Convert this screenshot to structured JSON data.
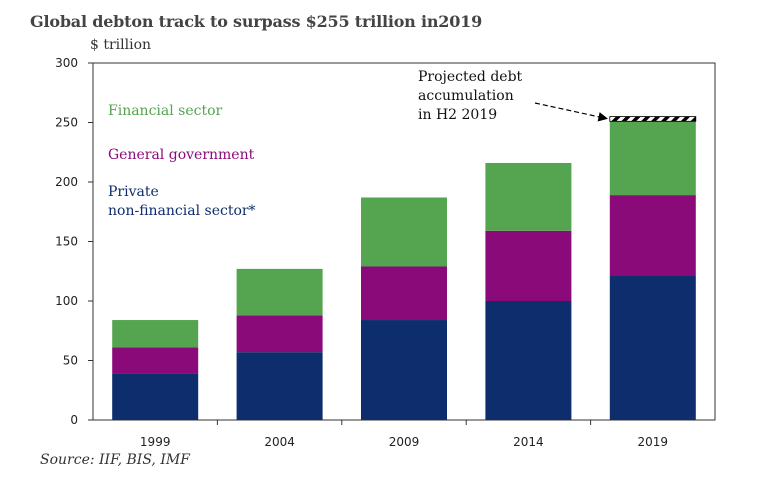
{
  "chart_data": {
    "type": "bar",
    "stacked": true,
    "title": "Global debton track to surpass $255 trillion in2019",
    "ylabel": "$ trillion",
    "xlabel": "",
    "source": "Source: IIF, BIS, IMF",
    "categories": [
      "1999",
      "2004",
      "2009",
      "2014",
      "2019"
    ],
    "ylim": [
      0,
      300
    ],
    "yticks": [
      0,
      50,
      100,
      150,
      200,
      250,
      300
    ],
    "series": [
      {
        "name": "Private non-financial sector*",
        "legend_lines": [
          "Private",
          "non-financial sector*"
        ],
        "color": "#0d2d6c",
        "values": [
          39,
          57,
          84,
          100,
          121
        ]
      },
      {
        "name": "General government",
        "legend_lines": [
          "General government"
        ],
        "color": "#8b0a7a",
        "values": [
          22,
          31,
          45,
          59,
          68
        ]
      },
      {
        "name": "Financial sector",
        "legend_lines": [
          "Financial sector"
        ],
        "color": "#55a450",
        "values": [
          23,
          39,
          58,
          57,
          62
        ]
      }
    ],
    "projection": {
      "category": "2019",
      "values": [
        251,
        255
      ],
      "annotation_lines": [
        "Projected debt",
        "accumulation",
        "in H2 2019"
      ]
    }
  }
}
